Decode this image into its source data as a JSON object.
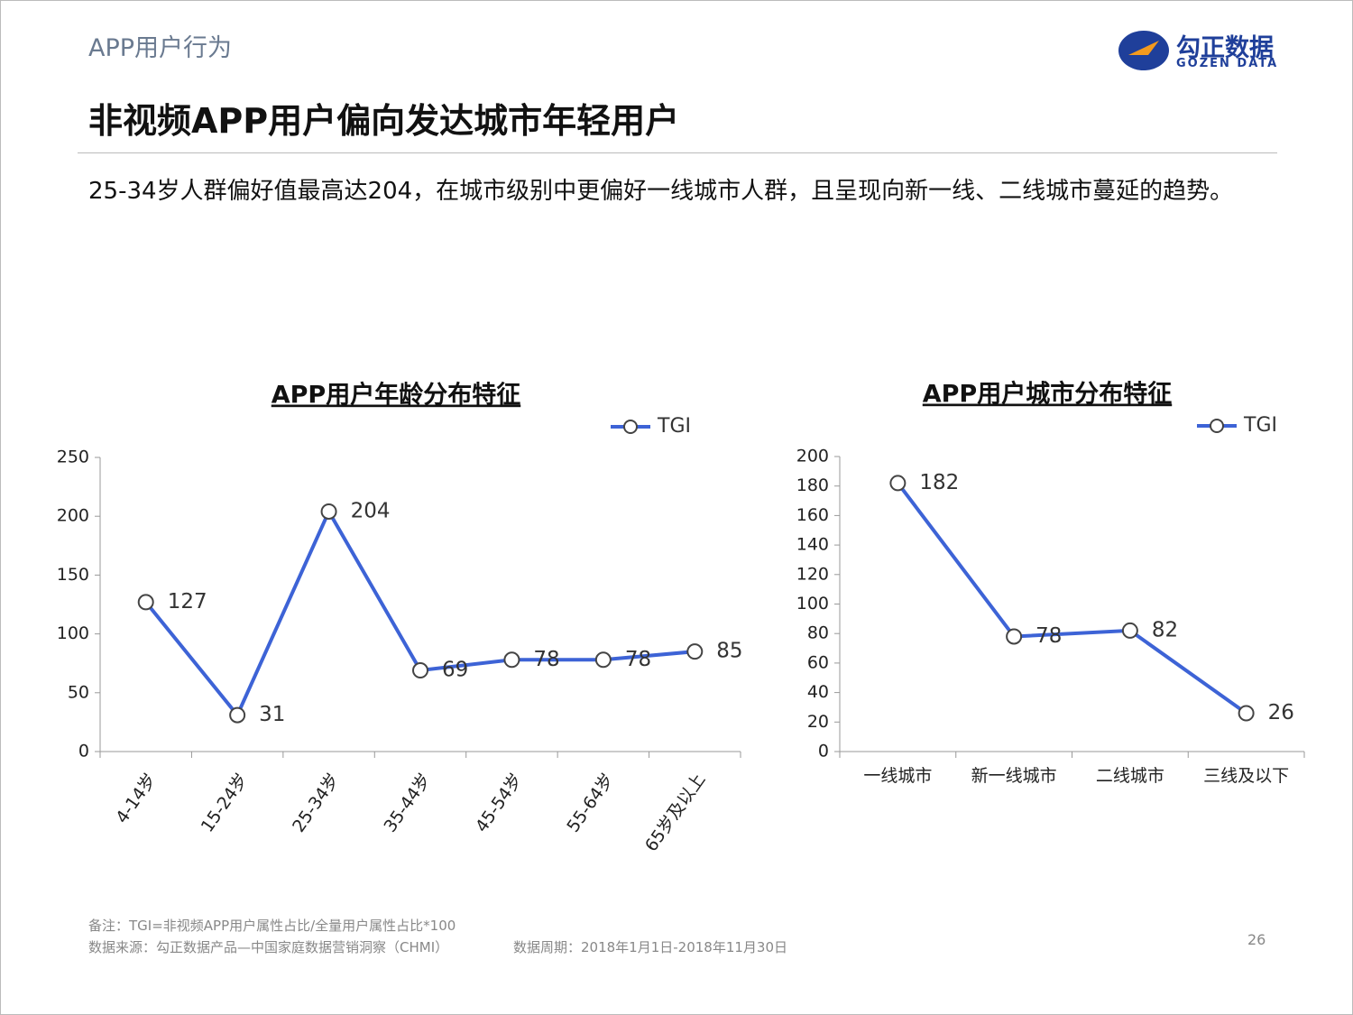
{
  "header": {
    "section": "APP用户行为",
    "title": "非视频APP用户偏向发达城市年轻用户",
    "summary": "25-34岁人群偏好值最高达204，在城市级别中更偏好一线城市人群，且呈现向新一线、二线城市蔓延的趋势。",
    "logo_name": "勾正数据",
    "logo_sub": "GOZEN DATA"
  },
  "chart_data": [
    {
      "type": "line",
      "title": "APP用户年龄分布特征",
      "categories": [
        "4-14岁",
        "15-24岁",
        "25-34岁",
        "35-44岁",
        "45-54岁",
        "55-64岁",
        "65岁及以上"
      ],
      "series": [
        {
          "name": "TGI",
          "color": "#3d63d6",
          "values": [
            127,
            31,
            204,
            69,
            78,
            78,
            85
          ]
        }
      ],
      "ylim": [
        0,
        250
      ],
      "yticks": [
        0,
        50,
        100,
        150,
        200,
        250
      ],
      "legend": "top-right"
    },
    {
      "type": "line",
      "title": "APP用户城市分布特征",
      "categories": [
        "一线城市",
        "新一线城市",
        "二线城市",
        "三线及以下"
      ],
      "series": [
        {
          "name": "TGI",
          "color": "#3d63d6",
          "values": [
            182,
            78,
            82,
            26
          ]
        }
      ],
      "ylim": [
        0,
        200
      ],
      "yticks": [
        0,
        20,
        40,
        60,
        80,
        100,
        120,
        140,
        160,
        180,
        200
      ],
      "legend": "top-right"
    }
  ],
  "footer": {
    "note": "备注：TGI=非视频APP用户属性占比/全量用户属性占比*100",
    "source": "数据来源：勾正数据产品—中国家庭数据营销洞察（CHMI）",
    "period": "数据周期：2018年1月1日-2018年11月30日",
    "page": "26"
  }
}
